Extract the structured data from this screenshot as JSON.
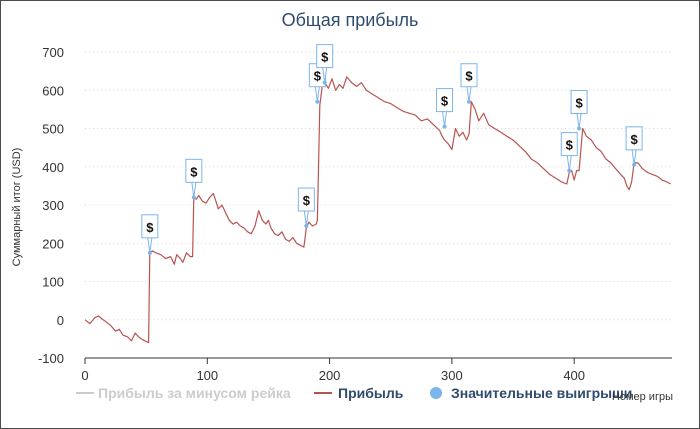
{
  "chart_data": {
    "type": "line",
    "title": "Общая прибыль",
    "xlabel": "Номер игры",
    "ylabel": "Суммарный итог (USD)",
    "xlim": [
      0,
      480
    ],
    "ylim": [
      -100,
      700
    ],
    "xticks": [
      0,
      100,
      200,
      300,
      400
    ],
    "yticks": [
      -100,
      0,
      100,
      200,
      300,
      400,
      500,
      600,
      700
    ],
    "grid": "horizontal dotted",
    "legend_position": "bottom",
    "series": [
      {
        "name": "Прибыль за минусом рейка",
        "color": "#cccccc",
        "hidden": true,
        "x": [],
        "y": []
      },
      {
        "name": "Прибыль",
        "color": "#b85450",
        "x": [
          0,
          4,
          8,
          11,
          14,
          17,
          21,
          25,
          28,
          31,
          35,
          38,
          41,
          44,
          46,
          49,
          52,
          53,
          55,
          58,
          62,
          66,
          70,
          73,
          75,
          78,
          80,
          83,
          86,
          88,
          89,
          91,
          93,
          96,
          99,
          102,
          105,
          107,
          109,
          112,
          115,
          118,
          121,
          124,
          127,
          130,
          133,
          136,
          139,
          142,
          145,
          148,
          150,
          152,
          155,
          158,
          161,
          164,
          167,
          170,
          173,
          176,
          179,
          181,
          183,
          186,
          189,
          190,
          192,
          194,
          196,
          199,
          202,
          205,
          208,
          211,
          214,
          218,
          222,
          226,
          230,
          235,
          240,
          245,
          250,
          255,
          260,
          265,
          270,
          275,
          280,
          285,
          290,
          292,
          294,
          297,
          300,
          303,
          306,
          309,
          312,
          314,
          316,
          319,
          322,
          326,
          330,
          335,
          340,
          345,
          350,
          355,
          360,
          365,
          370,
          375,
          380,
          385,
          390,
          394,
          396,
          398,
          400,
          402,
          404,
          407,
          410,
          414,
          418,
          422,
          426,
          430,
          434,
          438,
          441,
          443,
          445,
          447,
          449,
          452,
          456,
          460,
          464,
          468,
          472,
          476,
          479
        ],
        "y": [
          0,
          -10,
          5,
          10,
          2,
          -5,
          -15,
          -30,
          -25,
          -40,
          -45,
          -55,
          -35,
          -45,
          -50,
          -55,
          -60,
          175,
          180,
          175,
          170,
          160,
          165,
          145,
          170,
          160,
          150,
          175,
          165,
          165,
          320,
          315,
          325,
          310,
          305,
          320,
          330,
          310,
          290,
          300,
          280,
          260,
          250,
          255,
          245,
          240,
          230,
          225,
          245,
          285,
          260,
          250,
          260,
          240,
          225,
          220,
          230,
          210,
          205,
          215,
          200,
          195,
          190,
          240,
          255,
          245,
          250,
          260,
          560,
          610,
          620,
          605,
          630,
          600,
          615,
          605,
          635,
          620,
          610,
          620,
          600,
          590,
          580,
          570,
          565,
          555,
          545,
          540,
          535,
          520,
          525,
          510,
          495,
          480,
          470,
          460,
          445,
          500,
          480,
          490,
          470,
          485,
          570,
          550,
          520,
          540,
          510,
          500,
          490,
          480,
          470,
          455,
          440,
          420,
          410,
          395,
          380,
          370,
          360,
          355,
          385,
          390,
          365,
          390,
          390,
          500,
          480,
          470,
          450,
          440,
          420,
          410,
          395,
          380,
          370,
          350,
          340,
          360,
          410,
          410,
          395,
          385,
          380,
          375,
          365,
          360,
          355
        ]
      }
    ],
    "markers": {
      "name": "Значительные выигрыши",
      "color": "#7cb5ec",
      "symbol": "$",
      "points": [
        {
          "x": 53,
          "y": 175
        },
        {
          "x": 89,
          "y": 320
        },
        {
          "x": 181,
          "y": 245
        },
        {
          "x": 190,
          "y": 570
        },
        {
          "x": 196,
          "y": 620
        },
        {
          "x": 294,
          "y": 505
        },
        {
          "x": 314,
          "y": 570
        },
        {
          "x": 396,
          "y": 390
        },
        {
          "x": 404,
          "y": 500
        },
        {
          "x": 449,
          "y": 405
        }
      ]
    }
  }
}
